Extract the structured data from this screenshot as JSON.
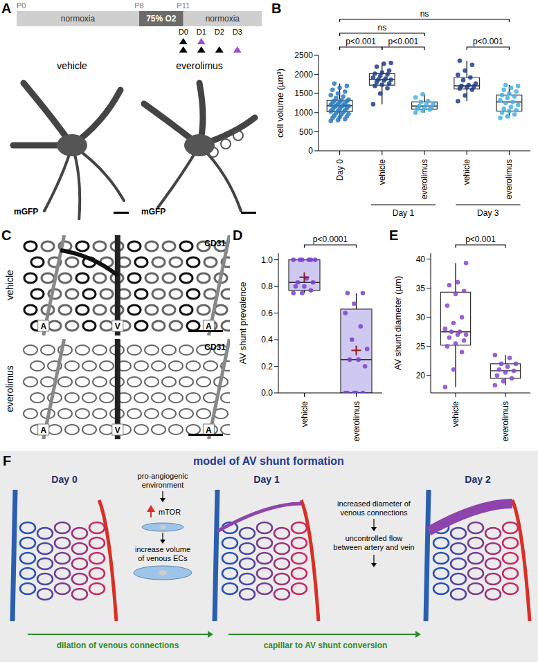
{
  "panel_letters": [
    "A",
    "B",
    "C",
    "D",
    "E",
    "F"
  ],
  "timeline": {
    "ages": [
      "P0",
      "P8",
      "P11"
    ],
    "phases": [
      "normoxia",
      "75% O2",
      "normoxia"
    ],
    "days": [
      "D0",
      "D1",
      "D2",
      "D3"
    ],
    "arrow_rows": [
      [
        "#000000",
        "#9b4fd6",
        null,
        null
      ],
      [
        "#000000",
        "#000000",
        "#000000",
        "#9b4fd6"
      ]
    ]
  },
  "panel_a_images": [
    {
      "label": "vehicle",
      "stain": "mGFP"
    },
    {
      "label": "everolimus",
      "stain": "mGFP"
    }
  ],
  "panel_c_images": [
    {
      "label": "vehicle",
      "stain": "CD31",
      "vessels": [
        "A",
        "V",
        "A"
      ]
    },
    {
      "label": "everolimus",
      "stain": "CD31",
      "vessels": [
        "A",
        "V",
        "A"
      ]
    }
  ],
  "chart_data": [
    {
      "type": "box",
      "categories": [
        "Day 0",
        "vehicle",
        "everolimus",
        "vehicle",
        "everolimus"
      ],
      "groups": [
        {
          "label": "Day 1",
          "from": 1,
          "to": 2
        },
        {
          "label": "Day 3",
          "from": 3,
          "to": 4
        }
      ],
      "y_label": "cell volume (µm³)",
      "ylim": [
        0,
        2500
      ],
      "yticks": [
        0,
        500,
        1000,
        1500,
        2000,
        2500
      ],
      "color": "#ffffff",
      "colors": [
        "#2b7bbf",
        "#1c3d8c",
        "#45b0e6",
        "#1c3d8c",
        "#45b0e6"
      ],
      "boxes": [
        {
          "min": 780,
          "q1": 1030,
          "median": 1180,
          "q3": 1320,
          "max": 1760
        },
        {
          "min": 1220,
          "q1": 1720,
          "median": 1870,
          "q3": 2020,
          "max": 2300
        },
        {
          "min": 1000,
          "q1": 1090,
          "median": 1170,
          "q3": 1280,
          "max": 1480
        },
        {
          "min": 1300,
          "q1": 1620,
          "median": 1700,
          "q3": 1920,
          "max": 2360
        },
        {
          "min": 860,
          "q1": 1040,
          "median": 1280,
          "q3": 1460,
          "max": 1720
        }
      ],
      "points": [
        [
          780,
          800,
          830,
          860,
          880,
          900,
          920,
          950,
          970,
          990,
          1010,
          1030,
          1040,
          1060,
          1080,
          1100,
          1120,
          1140,
          1160,
          1170,
          1180,
          1190,
          1200,
          1220,
          1240,
          1260,
          1280,
          1300,
          1310,
          1320,
          1340,
          1380,
          1420,
          1460,
          1500,
          1550,
          1600,
          1650,
          1700,
          1760
        ],
        [
          1220,
          1500,
          1640,
          1700,
          1730,
          1760,
          1800,
          1840,
          1860,
          1870,
          1890,
          1920,
          1960,
          2000,
          2020,
          2050,
          2100,
          2200,
          2280,
          2300
        ],
        [
          1000,
          1050,
          1080,
          1100,
          1120,
          1150,
          1170,
          1200,
          1230,
          1280,
          1300,
          1400,
          1480
        ],
        [
          1300,
          1450,
          1600,
          1630,
          1660,
          1690,
          1700,
          1720,
          1760,
          1850,
          1920,
          1990,
          2100,
          2250,
          2360
        ],
        [
          860,
          900,
          950,
          1000,
          1040,
          1060,
          1100,
          1150,
          1200,
          1250,
          1280,
          1320,
          1380,
          1420,
          1460,
          1500,
          1550,
          1600,
          1650,
          1700,
          1720
        ]
      ],
      "comparisons": [
        {
          "from": 0,
          "to": 1,
          "label": "p<0.001"
        },
        {
          "from": 1,
          "to": 2,
          "label": "p<0.001"
        },
        {
          "from": 3,
          "to": 4,
          "label": "p<0.001"
        },
        {
          "from": 0,
          "to": 2,
          "label": "ns"
        },
        {
          "from": 0,
          "to": 4,
          "label": "ns"
        }
      ]
    },
    {
      "type": "box",
      "categories": [
        "vehicle",
        "everolimus"
      ],
      "y_label": "AV shunt prevalence",
      "ylim": [
        0,
        1.05
      ],
      "yticks": [
        {
          "value": 0,
          "label": "0.0"
        },
        {
          "value": 0.2,
          "label": "0.2"
        },
        {
          "value": 0.4,
          "label": "0.4"
        },
        {
          "value": 0.6,
          "label": "0.6"
        },
        {
          "value": 0.8,
          "label": "0.8"
        },
        {
          "value": 1,
          "label": "1.0"
        }
      ],
      "color": "#cfc9f2",
      "colors": [
        "#7b3fd1",
        "#7b3fd1"
      ],
      "boxes": [
        {
          "min": 0.75,
          "q1": 0.77,
          "median": 0.83,
          "q3": 1.0,
          "max": 1.0,
          "mean": 0.87
        },
        {
          "min": 0,
          "q1": 0,
          "median": 0.25,
          "q3": 0.63,
          "max": 0.75,
          "mean": 0.32
        }
      ],
      "points": [
        [
          0.75,
          0.75,
          0.77,
          0.8,
          0.8,
          0.83,
          0.83,
          0.86,
          1.0,
          1.0,
          1.0,
          1.0,
          1.0,
          1.0
        ],
        [
          0,
          0,
          0,
          0,
          0,
          0.2,
          0.25,
          0.25,
          0.33,
          0.4,
          0.5,
          0.6,
          0.67,
          0.75,
          0.75
        ]
      ],
      "comparisons": [
        {
          "from": 0,
          "to": 1,
          "label": "p<0.0001"
        }
      ]
    },
    {
      "type": "box",
      "categories": [
        "vehicle",
        "everolimus"
      ],
      "y_label": "AV shunt diameter (µm)",
      "ylim": [
        17,
        41
      ],
      "yticks": [
        20,
        25,
        30,
        35,
        40
      ],
      "color": "#ffffff",
      "colors": [
        "#8a45cf",
        "#8a45cf"
      ],
      "boxes": [
        {
          "min": 18,
          "q1": 25.2,
          "median": 27.5,
          "q3": 34.3,
          "max": 39.3
        },
        {
          "min": 18.3,
          "q1": 19.5,
          "median": 20.8,
          "q3": 22,
          "max": 23.5
        }
      ],
      "points": [
        [
          18,
          21,
          24,
          25,
          25.5,
          26,
          26.5,
          27,
          27,
          27.5,
          27.5,
          28,
          29,
          30,
          32,
          34,
          34.5,
          35.5,
          36,
          39.3
        ],
        [
          18.3,
          19,
          19.5,
          20,
          20.5,
          20.8,
          21,
          21.5,
          22,
          22,
          23,
          23.5
        ]
      ],
      "comparisons": [
        {
          "from": 0,
          "to": 1,
          "label": "p<0.001"
        }
      ]
    }
  ],
  "model": {
    "title": "model of AV shunt formation",
    "days": [
      "Day 0",
      "Day 1",
      "Day 2"
    ],
    "step1": [
      "pro-angiogenic",
      "environment"
    ],
    "signal": "mTOR",
    "step2": [
      "increase volume",
      "of venous ECs"
    ],
    "transition1": "dilation of venous connections",
    "step3": [
      "increased diameter of",
      "venous connections"
    ],
    "step4": [
      "uncontrolled flow",
      "between artery and vein"
    ],
    "transition2": "capillar to AV shunt conversion"
  }
}
